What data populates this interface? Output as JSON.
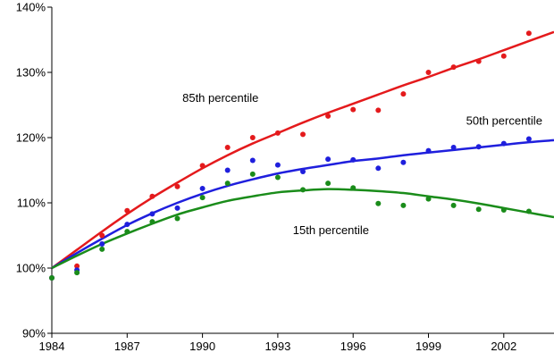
{
  "chart_data": {
    "type": "scatter",
    "title": "",
    "xlabel": "",
    "ylabel": "",
    "xlim": [
      1984,
      2004
    ],
    "ylim": [
      90,
      140
    ],
    "x_ticks": [
      1984,
      1987,
      1990,
      1993,
      1996,
      1999,
      2002
    ],
    "y_ticks": [
      90,
      100,
      110,
      120,
      130,
      140
    ],
    "x_tick_labels": [
      "1984",
      "1987",
      "1990",
      "1993",
      "1996",
      "1999",
      "2002"
    ],
    "y_tick_labels": [
      "90%",
      "100%",
      "110%",
      "120%",
      "130%",
      "140%"
    ],
    "grid": false,
    "x": [
      1984,
      1985,
      1986,
      1987,
      1988,
      1989,
      1990,
      1991,
      1992,
      1993,
      1994,
      1995,
      1996,
      1997,
      1998,
      1999,
      2000,
      2001,
      2002,
      2003
    ],
    "series": [
      {
        "name": "85th percentile",
        "color": "#e41a1c",
        "points": [
          98.5,
          100.3,
          105.0,
          108.8,
          111.0,
          112.5,
          115.7,
          118.5,
          120.0,
          120.7,
          120.5,
          123.3,
          124.3,
          124.2,
          126.7,
          130.0,
          130.8,
          131.7,
          132.5,
          136.0
        ],
        "fit": [
          100.0,
          102.8,
          105.6,
          108.3,
          110.8,
          113.1,
          115.3,
          117.3,
          119.1,
          120.7,
          122.3,
          123.8,
          125.2,
          126.6,
          128.0,
          129.3,
          130.7,
          132.0,
          133.4,
          134.8,
          136.2
        ]
      },
      {
        "name": "50th percentile",
        "color": "#1f1fdd",
        "points": [
          98.5,
          99.7,
          103.7,
          106.7,
          108.3,
          109.2,
          112.2,
          115.0,
          116.5,
          115.8,
          114.8,
          116.7,
          116.6,
          115.3,
          116.2,
          118.0,
          118.5,
          118.6,
          119.1,
          119.8
        ],
        "fit": [
          100.0,
          102.3,
          104.5,
          106.6,
          108.4,
          110.0,
          111.4,
          112.6,
          113.6,
          114.5,
          115.2,
          115.8,
          116.4,
          116.8,
          117.3,
          117.7,
          118.1,
          118.5,
          118.9,
          119.3,
          119.6
        ]
      },
      {
        "name": "15th percentile",
        "color": "#1a8c1a",
        "points": [
          98.5,
          99.3,
          102.9,
          105.6,
          107.1,
          107.6,
          110.8,
          113.0,
          114.4,
          113.9,
          112.0,
          113.0,
          112.3,
          109.9,
          109.6,
          110.6,
          109.6,
          109.0,
          108.9,
          108.7
        ],
        "fit": [
          100.0,
          101.9,
          103.7,
          105.3,
          106.8,
          108.2,
          109.3,
          110.3,
          111.0,
          111.6,
          111.9,
          112.1,
          112.0,
          111.8,
          111.5,
          111.0,
          110.5,
          109.9,
          109.2,
          108.5,
          107.8
        ]
      }
    ],
    "fit_x": [
      1984,
      1985,
      1986,
      1987,
      1988,
      1989,
      1990,
      1991,
      1992,
      1993,
      1994,
      1995,
      1996,
      1997,
      1998,
      1999,
      2000,
      2001,
      2002,
      2003,
      2004
    ],
    "annotations": [
      {
        "text": "85th percentile",
        "x": 1989.2,
        "y": 125.5
      },
      {
        "text": "50th percentile",
        "x": 2000.5,
        "y": 122.0
      },
      {
        "text": "15th percentile",
        "x": 1993.6,
        "y": 105.2
      }
    ]
  }
}
